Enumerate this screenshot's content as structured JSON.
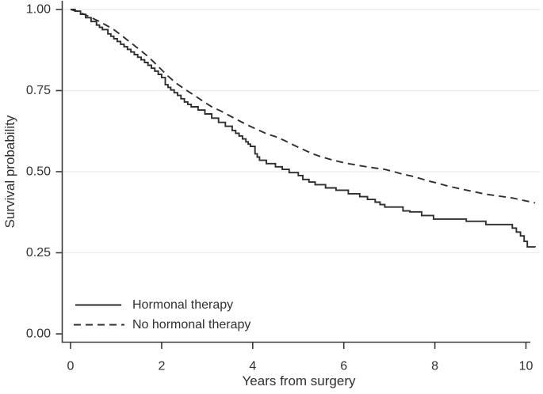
{
  "chart_data": {
    "type": "line",
    "subtype": "kaplan-meier-survival",
    "title": "",
    "xlabel": "Years from surgery",
    "ylabel": "Survival probability",
    "xlim": [
      0,
      10
    ],
    "ylim": [
      0,
      1
    ],
    "grid": "horizontal-only",
    "xticks": [
      {
        "value": 0,
        "label": "0"
      },
      {
        "value": 2,
        "label": "2"
      },
      {
        "value": 4,
        "label": "4"
      },
      {
        "value": 6,
        "label": "6"
      },
      {
        "value": 8,
        "label": "8"
      },
      {
        "value": 10,
        "label": "10"
      }
    ],
    "yticks": [
      {
        "value": 0.0,
        "label": "0.00"
      },
      {
        "value": 0.25,
        "label": "0.25"
      },
      {
        "value": 0.5,
        "label": "0.50"
      },
      {
        "value": 0.75,
        "label": "0.75"
      },
      {
        "value": 1.0,
        "label": "1.00"
      }
    ],
    "legend": {
      "position": "inside-bottom-left",
      "entries": [
        {
          "label": "Hormonal therapy",
          "style": "solid"
        },
        {
          "label": "No hormonal therapy",
          "style": "dashed"
        }
      ]
    },
    "series": [
      {
        "name": "Hormonal therapy",
        "line": "solid",
        "color": "#2e2e2e",
        "points": [
          [
            0,
            1.0
          ],
          [
            0.1,
            0.995
          ],
          [
            0.22,
            0.985
          ],
          [
            0.33,
            0.975
          ],
          [
            0.45,
            0.963
          ],
          [
            0.57,
            0.952
          ],
          [
            0.7,
            0.938
          ],
          [
            0.82,
            0.925
          ],
          [
            0.95,
            0.91
          ],
          [
            1.1,
            0.893
          ],
          [
            1.25,
            0.877
          ],
          [
            1.4,
            0.861
          ],
          [
            1.55,
            0.845
          ],
          [
            1.7,
            0.828
          ],
          [
            1.85,
            0.81
          ],
          [
            2.0,
            0.79
          ],
          [
            2.08,
            0.768
          ],
          [
            2.2,
            0.752
          ],
          [
            2.35,
            0.735
          ],
          [
            2.5,
            0.715
          ],
          [
            2.65,
            0.7
          ],
          [
            2.8,
            0.69
          ],
          [
            2.95,
            0.678
          ],
          [
            3.1,
            0.665
          ],
          [
            3.25,
            0.652
          ],
          [
            3.4,
            0.64
          ],
          [
            3.55,
            0.627
          ],
          [
            3.7,
            0.61
          ],
          [
            3.85,
            0.592
          ],
          [
            3.95,
            0.578
          ],
          [
            4.05,
            0.555
          ],
          [
            4.15,
            0.535
          ],
          [
            4.3,
            0.525
          ],
          [
            4.5,
            0.515
          ],
          [
            4.65,
            0.507
          ],
          [
            4.8,
            0.497
          ],
          [
            5.0,
            0.488
          ],
          [
            5.1,
            0.476
          ],
          [
            5.37,
            0.46
          ],
          [
            5.6,
            0.45
          ],
          [
            5.83,
            0.443
          ],
          [
            6.1,
            0.432
          ],
          [
            6.35,
            0.423
          ],
          [
            6.69,
            0.406
          ],
          [
            6.9,
            0.391
          ],
          [
            7.3,
            0.379
          ],
          [
            7.45,
            0.376
          ],
          [
            7.97,
            0.354
          ],
          [
            8.69,
            0.347
          ],
          [
            9.12,
            0.337
          ],
          [
            9.7,
            0.326
          ],
          [
            9.79,
            0.314
          ],
          [
            9.88,
            0.302
          ],
          [
            9.96,
            0.285
          ],
          [
            10.03,
            0.268
          ],
          [
            10.2,
            0.267
          ]
        ]
      },
      {
        "name": "No hormonal therapy",
        "line": "dashed",
        "color": "#2e2e2e",
        "points": [
          [
            0,
            1.0
          ],
          [
            0.18,
            0.993
          ],
          [
            0.35,
            0.982
          ],
          [
            0.5,
            0.972
          ],
          [
            0.65,
            0.962
          ],
          [
            0.8,
            0.95
          ],
          [
            0.95,
            0.938
          ],
          [
            1.1,
            0.922
          ],
          [
            1.3,
            0.9
          ],
          [
            1.5,
            0.878
          ],
          [
            1.7,
            0.855
          ],
          [
            1.9,
            0.828
          ],
          [
            2.1,
            0.8
          ],
          [
            2.3,
            0.775
          ],
          [
            2.5,
            0.755
          ],
          [
            2.7,
            0.737
          ],
          [
            2.9,
            0.718
          ],
          [
            3.1,
            0.7
          ],
          [
            3.3,
            0.687
          ],
          [
            3.5,
            0.672
          ],
          [
            3.7,
            0.657
          ],
          [
            3.9,
            0.643
          ],
          [
            4.1,
            0.63
          ],
          [
            4.3,
            0.617
          ],
          [
            4.5,
            0.608
          ],
          [
            4.7,
            0.596
          ],
          [
            4.9,
            0.582
          ],
          [
            5.1,
            0.569
          ],
          [
            5.3,
            0.556
          ],
          [
            5.5,
            0.546
          ],
          [
            5.7,
            0.538
          ],
          [
            5.9,
            0.531
          ],
          [
            6.1,
            0.525
          ],
          [
            6.3,
            0.52
          ],
          [
            6.5,
            0.515
          ],
          [
            6.7,
            0.511
          ],
          [
            6.9,
            0.507
          ],
          [
            7.1,
            0.5
          ],
          [
            7.3,
            0.492
          ],
          [
            7.5,
            0.486
          ],
          [
            7.7,
            0.478
          ],
          [
            7.9,
            0.47
          ],
          [
            8.1,
            0.463
          ],
          [
            8.3,
            0.455
          ],
          [
            8.5,
            0.449
          ],
          [
            8.7,
            0.443
          ],
          [
            8.9,
            0.437
          ],
          [
            9.1,
            0.431
          ],
          [
            9.3,
            0.427
          ],
          [
            9.5,
            0.423
          ],
          [
            9.7,
            0.419
          ],
          [
            9.9,
            0.413
          ],
          [
            10.2,
            0.404
          ]
        ]
      }
    ]
  },
  "colors": {
    "curve": "#2e2e2e",
    "axis": "#3a3a3a",
    "grid": "#ebebeb",
    "text": "#303030",
    "background": "#ffffff"
  }
}
